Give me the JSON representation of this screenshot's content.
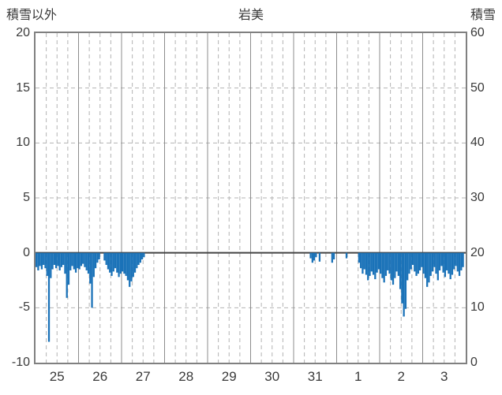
{
  "header": {
    "left_title": "積雪以外",
    "center_title": "岩美",
    "right_title": "積雪"
  },
  "colors": {
    "bar": "#1a72b8",
    "border": "#808080",
    "grid_dash": "#b3b3b3",
    "grid_solid": "#8c8c8c",
    "zero_line": "#444444",
    "text": "#3a3a3a",
    "background": "#ffffff"
  },
  "chart_data": {
    "type": "bar",
    "title": "岩美",
    "left_axis": {
      "label": "積雪以外",
      "min": -10,
      "max": 20,
      "ticks": [
        20,
        15,
        10,
        5,
        0,
        -5,
        -10
      ]
    },
    "right_axis": {
      "label": "積雪",
      "min": 0,
      "max": 60,
      "ticks": [
        60,
        50,
        40,
        30,
        20,
        10,
        0
      ]
    },
    "x_axis": {
      "day_labels": [
        "25",
        "26",
        "27",
        "28",
        "29",
        "30",
        "31",
        "1",
        "2",
        "3"
      ],
      "hours_per_day": 24,
      "subdivisions_per_day": 4
    },
    "grid": {
      "horizontal_dashed_at": [
        15,
        10,
        5,
        -5
      ],
      "vertical_solid": "day-boundaries",
      "vertical_dashed": "6-hour-intervals"
    },
    "legend_position": "none",
    "series": [
      {
        "name": "積雪以外",
        "axis": "left",
        "color": "#1a72b8",
        "days": [
          {
            "label": "25",
            "hourly": [
              -1.3,
              -1.6,
              -1.2,
              -1.5,
              -1.1,
              -1.4,
              -2.1,
              -8.1,
              -2.3,
              -1.5,
              -1.1,
              -1.4,
              -1.2,
              -1.6,
              -1.3,
              -1.1,
              -1.9,
              -4.1,
              -2.9,
              -1.6,
              -1.2,
              -1.5,
              -1.8,
              -1.4
            ]
          },
          {
            "label": "26",
            "hourly": [
              -1.5,
              -1.2,
              -1.0,
              -1.3,
              -1.6,
              -1.9,
              -2.8,
              -5.0,
              -2.2,
              -1.4,
              -0.9,
              -0.6,
              null,
              null,
              -0.7,
              -1.1,
              -1.5,
              -1.8,
              -2.1,
              -1.7,
              -1.4,
              -1.8,
              -2.2,
              -1.9
            ]
          },
          {
            "label": "27",
            "hourly": [
              -1.7,
              -1.9,
              -2.1,
              -2.5,
              -3.1,
              -2.6,
              -2.2,
              -1.8,
              -1.4,
              -1.1,
              -0.9,
              -0.6,
              -0.4,
              null,
              null,
              null,
              null,
              null,
              null,
              null,
              null,
              null,
              null,
              null
            ]
          },
          {
            "label": "28",
            "hourly": [
              null,
              null,
              null,
              null,
              null,
              null,
              null,
              null,
              null,
              null,
              null,
              null,
              null,
              null,
              null,
              null,
              null,
              null,
              null,
              null,
              null,
              null,
              null,
              null
            ]
          },
          {
            "label": "29",
            "hourly": [
              null,
              null,
              null,
              null,
              null,
              null,
              null,
              null,
              null,
              null,
              null,
              null,
              null,
              null,
              null,
              null,
              null,
              null,
              null,
              null,
              null,
              null,
              null,
              null
            ]
          },
          {
            "label": "30",
            "hourly": [
              null,
              null,
              null,
              null,
              null,
              null,
              null,
              null,
              null,
              null,
              null,
              null,
              null,
              null,
              null,
              null,
              null,
              null,
              null,
              null,
              null,
              null,
              null,
              null
            ]
          },
          {
            "label": "31",
            "hourly": [
              null,
              null,
              null,
              null,
              null,
              null,
              null,
              null,
              null,
              -0.5,
              -0.9,
              -0.7,
              -0.4,
              null,
              -0.8,
              null,
              null,
              null,
              null,
              null,
              null,
              -0.9,
              -0.6,
              null
            ]
          },
          {
            "label": "1",
            "hourly": [
              null,
              null,
              null,
              null,
              null,
              -0.5,
              null,
              null,
              null,
              null,
              null,
              null,
              -0.9,
              -1.4,
              -1.9,
              -1.5,
              -2.0,
              -2.5,
              -2.1,
              -1.7,
              -2.0,
              -2.4,
              -1.8,
              -1.5
            ]
          },
          {
            "label": "2",
            "hourly": [
              -1.9,
              -2.3,
              -2.7,
              -2.1,
              -1.6,
              -1.9,
              -2.5,
              -2.9,
              -2.3,
              -1.7,
              -2.1,
              -3.3,
              -4.6,
              -5.8,
              -5.1,
              -2.5,
              -1.9,
              -1.5,
              -1.1,
              -1.7,
              -2.1,
              -1.9,
              -1.6,
              -1.3
            ]
          },
          {
            "label": "3",
            "hourly": [
              -1.9,
              -2.3,
              -3.1,
              -2.7,
              -2.1,
              -1.7,
              -1.3,
              -1.9,
              -2.5,
              -1.6,
              -1.2,
              -1.8,
              -2.2,
              -1.6,
              -1.9,
              -2.4,
              -2.0,
              -1.5,
              -1.2,
              -1.7,
              -2.1,
              -1.6,
              -1.3,
              null
            ]
          }
        ]
      }
    ]
  }
}
